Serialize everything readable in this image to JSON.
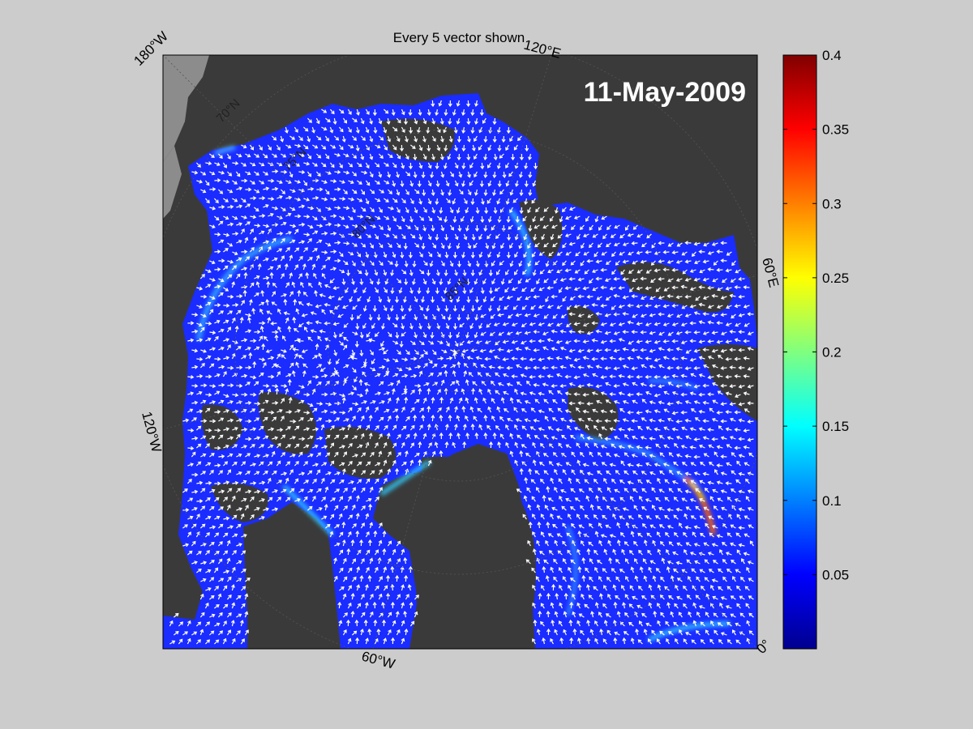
{
  "figure": {
    "title": "Every 5 vector shown",
    "date": "11-May-2009"
  },
  "map": {
    "projection": "north-polar-stereographic",
    "longitude_labels": [
      "180°W",
      "120°E",
      "60°E",
      "0°",
      "60°W",
      "120°W"
    ],
    "latitude_labels": [
      "85°N",
      "80°N",
      "75°N",
      "70°N"
    ],
    "colors": {
      "land": "#3a3a3a",
      "out_of_domain": "#8c8c8c",
      "coast_fringe": "#7a7a7a",
      "ice_low": "#1a2cff",
      "vectors": "#ffffff"
    },
    "vector_stride": 5
  },
  "colorbar": {
    "min": 0,
    "max": 0.4,
    "ticks": [
      0.05,
      0.1,
      0.15,
      0.2,
      0.25,
      0.3,
      0.35,
      0.4
    ],
    "tick_labels": [
      "0.05",
      "0.1",
      "0.15",
      "0.2",
      "0.25",
      "0.3",
      "0.35",
      "0.4"
    ],
    "colormap": "jet"
  }
}
